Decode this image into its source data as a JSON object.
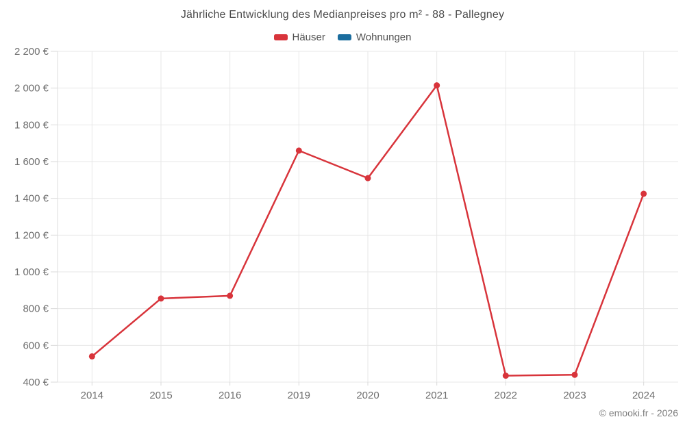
{
  "title": "Jährliche Entwicklung des Medianpreises pro m² - 88 - Pallegney",
  "copyright": "© emooki.fr - 2026",
  "chart_data": {
    "type": "line",
    "title": "Jährliche Entwicklung des Medianpreises pro m² - 88 - Pallegney",
    "categories": [
      "2014",
      "2015",
      "2016",
      "2019",
      "2020",
      "2021",
      "2022",
      "2023",
      "2024"
    ],
    "series": [
      {
        "name": "Häuser",
        "color": "#d8343b",
        "values": [
          540,
          855,
          870,
          1660,
          1510,
          2015,
          435,
          440,
          1425
        ]
      },
      {
        "name": "Wohnungen",
        "color": "#1b6d9e",
        "values": []
      }
    ],
    "xlabel": "",
    "ylabel": "",
    "ylim": [
      400,
      2200
    ],
    "ytick_step": 200,
    "ytick_labels": [
      "400 €",
      "600 €",
      "800 €",
      "1 000 €",
      "1 200 €",
      "1 400 €",
      "1 600 €",
      "1 800 €",
      "2 000 €",
      "2 200 €"
    ],
    "grid": true,
    "legend_position": "top",
    "currency": "€"
  },
  "style": {
    "grid_color": "#e7e7e7",
    "axis_color": "#dedede",
    "tick_color": "#d9d9d9",
    "tick_label_color": "#6e6e6e",
    "point_radius": 4.5,
    "line_width": 2.5
  }
}
